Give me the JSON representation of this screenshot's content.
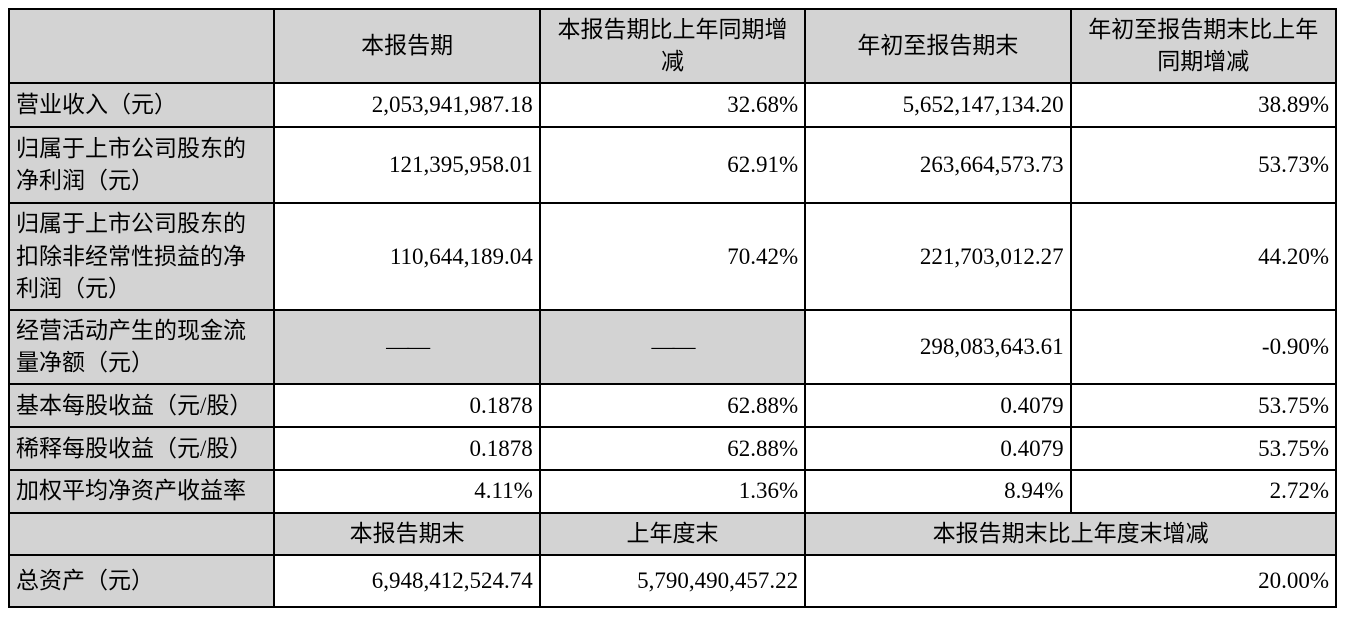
{
  "page": {
    "background_color": "#ffffff",
    "description": "quarterly-report-key-financials-table"
  },
  "colors": {
    "border": "#000000",
    "shaded_cell_bg": "#d3d3d3",
    "text": "#000000",
    "dash_placeholder": "#595959"
  },
  "table": {
    "columns": 5,
    "rows": [
      {
        "name": "header-row-periods",
        "height": 70,
        "cells": [
          {
            "name": "corner-blank-cell",
            "text": "",
            "align": "center",
            "shaded": true
          },
          {
            "name": "col-header-current-period",
            "text": "本报告期",
            "align": "center",
            "shaded": true
          },
          {
            "name": "col-header-current-period-yoy-change",
            "text": "本报告期比上年同期增减",
            "align": "center",
            "shaded": true
          },
          {
            "name": "col-header-ytd",
            "text": "年初至报告期末",
            "align": "center",
            "shaded": true
          },
          {
            "name": "col-header-ytd-yoy-change",
            "text": "年初至报告期末比上年同期增减",
            "align": "center",
            "shaded": true
          }
        ]
      },
      {
        "name": "row-operating-revenue",
        "height": 44,
        "cells": [
          {
            "name": "label-operating-revenue",
            "text": "营业收入（元）",
            "align": "left",
            "shaded": true
          },
          {
            "name": "value-revenue-current",
            "text": "2,053,941,987.18",
            "align": "right"
          },
          {
            "name": "value-revenue-yoy",
            "text": "32.68%",
            "align": "right"
          },
          {
            "name": "value-revenue-ytd",
            "text": "5,652,147,134.20",
            "align": "right"
          },
          {
            "name": "value-revenue-ytd-yoy",
            "text": "38.89%",
            "align": "right"
          }
        ]
      },
      {
        "name": "row-net-profit-attributable",
        "height": 76,
        "cells": [
          {
            "name": "label-net-profit-attributable",
            "text": "归属于上市公司股东的净利润（元）",
            "align": "left",
            "shaded": true
          },
          {
            "name": "value-net-profit-current",
            "text": "121,395,958.01",
            "align": "right"
          },
          {
            "name": "value-net-profit-yoy",
            "text": "62.91%",
            "align": "right"
          },
          {
            "name": "value-net-profit-ytd",
            "text": "263,664,573.73",
            "align": "right"
          },
          {
            "name": "value-net-profit-ytd-yoy",
            "text": "53.73%",
            "align": "right"
          }
        ]
      },
      {
        "name": "row-net-profit-deducting-nonrecurring",
        "height": 104,
        "cells": [
          {
            "name": "label-net-profit-deducting-nonrecurring",
            "text": "归属于上市公司股东的扣除非经常性损益的净利润（元）",
            "align": "left",
            "shaded": true
          },
          {
            "name": "value-deducted-profit-current",
            "text": "110,644,189.04",
            "align": "right"
          },
          {
            "name": "value-deducted-profit-yoy",
            "text": "70.42%",
            "align": "right"
          },
          {
            "name": "value-deducted-profit-ytd",
            "text": "221,703,012.27",
            "align": "right"
          },
          {
            "name": "value-deducted-profit-ytd-yoy",
            "text": "44.20%",
            "align": "right"
          }
        ]
      },
      {
        "name": "row-operating-cash-flow",
        "height": 74,
        "cells": [
          {
            "name": "label-operating-cash-flow",
            "text": "经营活动产生的现金流量净额（元）",
            "align": "left",
            "shaded": true
          },
          {
            "name": "placeholder-dash-current",
            "text": "——",
            "align": "center",
            "shaded": true,
            "muted": true
          },
          {
            "name": "placeholder-dash-yoy",
            "text": "——",
            "align": "center",
            "shaded": true,
            "muted": true
          },
          {
            "name": "value-cash-flow-ytd",
            "text": "298,083,643.61",
            "align": "right"
          },
          {
            "name": "value-cash-flow-ytd-yoy",
            "text": "-0.90%",
            "align": "right"
          }
        ]
      },
      {
        "name": "row-basic-eps",
        "height": 43,
        "cells": [
          {
            "name": "label-basic-eps",
            "text": "基本每股收益（元/股）",
            "align": "left",
            "shaded": true
          },
          {
            "name": "value-basic-eps-current",
            "text": "0.1878",
            "align": "right"
          },
          {
            "name": "value-basic-eps-yoy",
            "text": "62.88%",
            "align": "right"
          },
          {
            "name": "value-basic-eps-ytd",
            "text": "0.4079",
            "align": "right"
          },
          {
            "name": "value-basic-eps-ytd-yoy",
            "text": "53.75%",
            "align": "right"
          }
        ]
      },
      {
        "name": "row-diluted-eps",
        "height": 43,
        "cells": [
          {
            "name": "label-diluted-eps",
            "text": "稀释每股收益（元/股）",
            "align": "left",
            "shaded": true
          },
          {
            "name": "value-diluted-eps-current",
            "text": "0.1878",
            "align": "right"
          },
          {
            "name": "value-diluted-eps-yoy",
            "text": "62.88%",
            "align": "right"
          },
          {
            "name": "value-diluted-eps-ytd",
            "text": "0.4079",
            "align": "right"
          },
          {
            "name": "value-diluted-eps-ytd-yoy",
            "text": "53.75%",
            "align": "right"
          }
        ]
      },
      {
        "name": "row-weighted-average-roe",
        "height": 42,
        "cells": [
          {
            "name": "label-weighted-average-roe",
            "text": "加权平均净资产收益率",
            "align": "left",
            "shaded": true
          },
          {
            "name": "value-roe-current",
            "text": "4.11%",
            "align": "right"
          },
          {
            "name": "value-roe-yoy",
            "text": "1.36%",
            "align": "right"
          },
          {
            "name": "value-roe-ytd",
            "text": "8.94%",
            "align": "right"
          },
          {
            "name": "value-roe-ytd-yoy",
            "text": "2.72%",
            "align": "right"
          }
        ]
      },
      {
        "name": "header-row-period-end",
        "height": 40,
        "cells": [
          {
            "name": "header2-blank-cell",
            "text": "",
            "align": "center",
            "shaded": true
          },
          {
            "name": "col-header-end-of-current-period",
            "text": "本报告期末",
            "align": "center",
            "shaded": true
          },
          {
            "name": "col-header-end-of-prior-year",
            "text": "上年度末",
            "align": "center",
            "shaded": true
          },
          {
            "name": "col-header-change-vs-prior-year-end",
            "text": "本报告期末比上年度末增减",
            "align": "center",
            "shaded": true,
            "colspan": 2
          }
        ]
      },
      {
        "name": "row-total-assets",
        "height": 52,
        "cells": [
          {
            "name": "label-total-assets",
            "text": "总资产（元）",
            "align": "left",
            "shaded": true
          },
          {
            "name": "value-total-assets-current",
            "text": "6,948,412,524.74",
            "align": "right"
          },
          {
            "name": "value-total-assets-prior-year",
            "text": "5,790,490,457.22",
            "align": "right"
          },
          {
            "name": "value-total-assets-change",
            "text": "20.00%",
            "align": "right",
            "colspan": 2
          }
        ]
      }
    ]
  }
}
